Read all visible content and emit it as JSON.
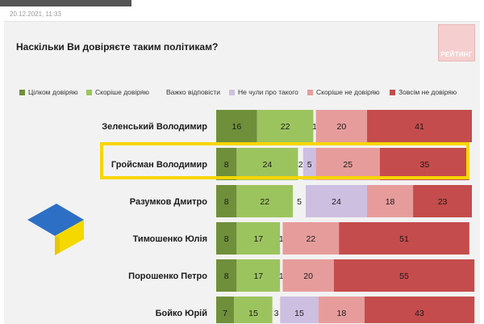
{
  "timestamp": "20.12.2021, 11:33",
  "logo_text": "РЕЙТИНГ",
  "chart_data": {
    "type": "bar",
    "stacked": true,
    "orientation": "horizontal",
    "title": "Наскільки Ви довіряєте таким політикам?",
    "categories": [
      "Зеленський Володимир",
      "Гройсман Володимир",
      "Разумков Дмитро",
      "Тимошенко Юлія",
      "Порошенко Петро",
      "Бойко Юрій"
    ],
    "highlighted_category": "Гройсман Володимир",
    "legend_placement": "top",
    "series": [
      {
        "name": "Цілком довіряю",
        "color": "#6f8f3b",
        "values": [
          16,
          8,
          8,
          8,
          8,
          7
        ]
      },
      {
        "name": "Скоріше довіряю",
        "color": "#9cc45e",
        "values": [
          22,
          24,
          22,
          17,
          17,
          15
        ]
      },
      {
        "name": "Важко відповісти",
        "color": "#f2f2f2",
        "values": [
          1,
          2,
          5,
          1,
          1,
          3
        ]
      },
      {
        "name": "Не чули про такого",
        "color": "#cdbfe0",
        "values": [
          0,
          5,
          24,
          0,
          0,
          15
        ]
      },
      {
        "name": "Скоріше не довіряю",
        "color": "#e79c9c",
        "values": [
          20,
          25,
          18,
          22,
          20,
          18
        ]
      },
      {
        "name": "Зовсім не довіряю",
        "color": "#c54c4c",
        "values": [
          41,
          35,
          23,
          51,
          55,
          43
        ]
      }
    ],
    "xlim": [
      0,
      100
    ]
  }
}
